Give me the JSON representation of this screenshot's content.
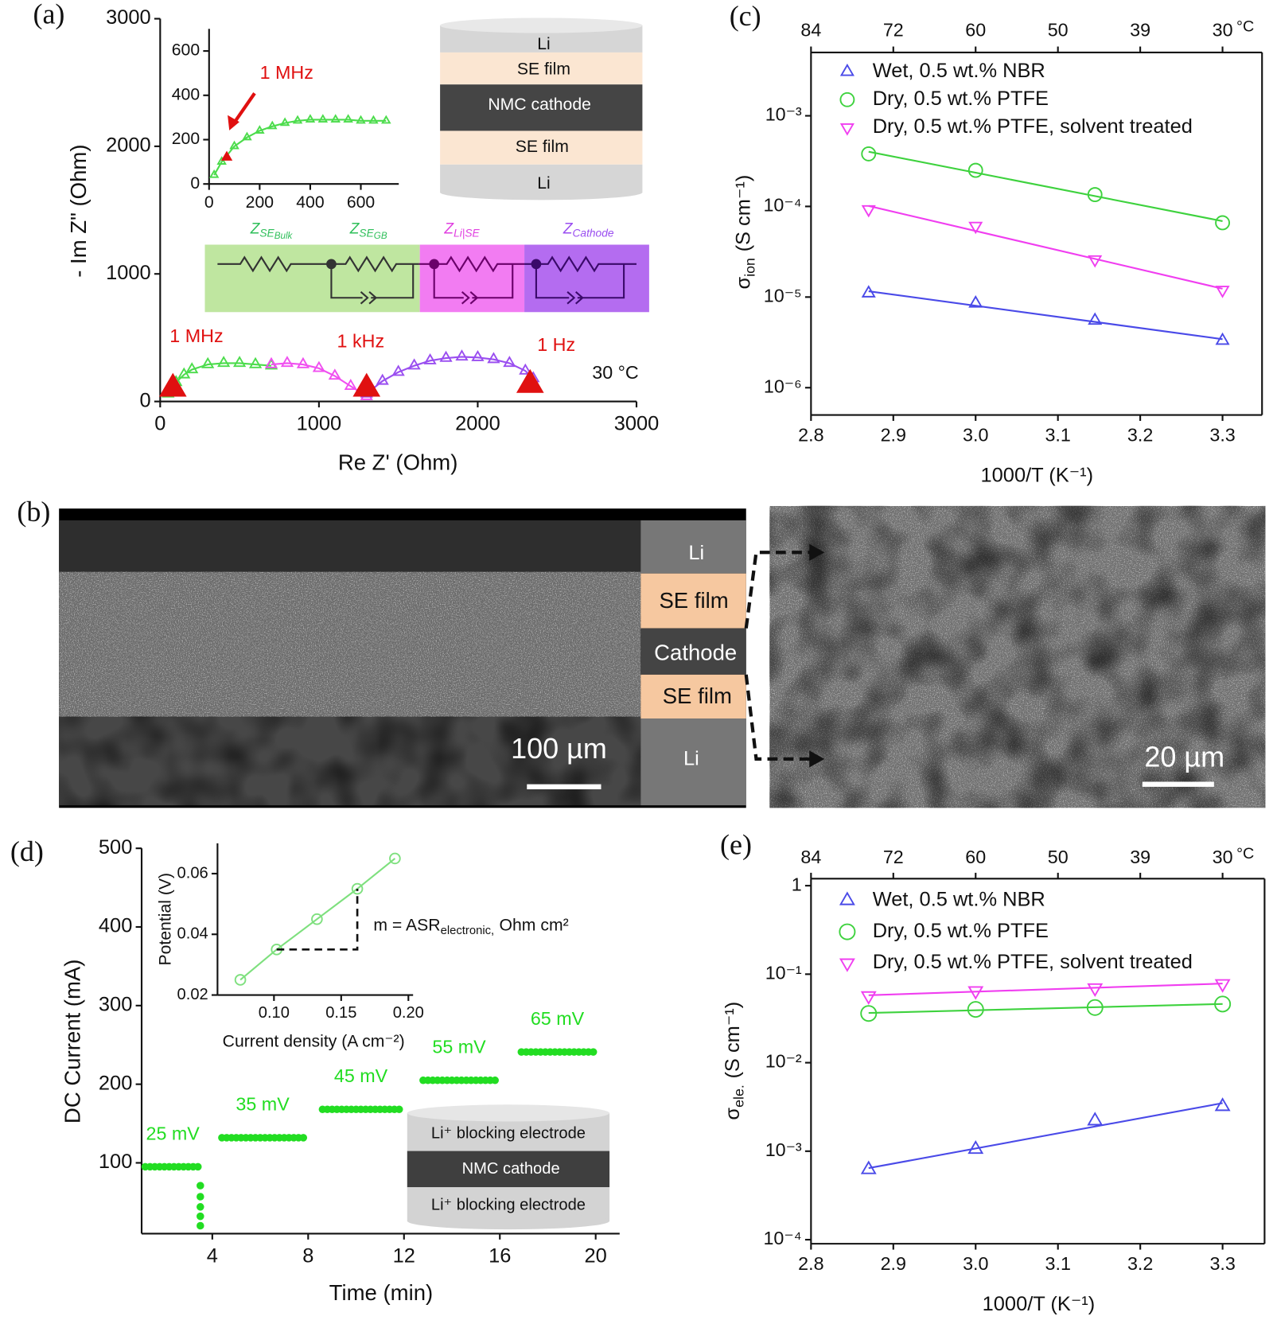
{
  "panel_labels": [
    "(a)",
    "(b)",
    "(c)",
    "(d)",
    "(e)"
  ],
  "schematic_a": {
    "layers": [
      "Li",
      "SE film",
      "NMC cathode",
      "SE film",
      "Li"
    ],
    "circuit": [
      {
        "symbol": "Z",
        "subscript": "SE",
        "subsub": "Bulk"
      },
      {
        "symbol": "Z",
        "subscript": "SE",
        "subsub": "GB"
      },
      {
        "symbol": "Z",
        "subscript": "Li|SE"
      },
      {
        "symbol": "Z",
        "subscript": "Cathode"
      }
    ]
  },
  "panel_b": {
    "layers": [
      "Li",
      "SE film",
      "Cathode",
      "SE film",
      "Li"
    ],
    "scale_bars": [
      "100 µm",
      "20 µm"
    ]
  },
  "schematic_d": {
    "layers": [
      "Li⁺ blocking electrode",
      "NMC cathode",
      "Li⁺ blocking electrode"
    ]
  },
  "chart_data": [
    {
      "type": "line",
      "xlabel": "Re Z' (Ohm)",
      "ylabel": "- Im Z\" (Ohm)",
      "xlim": [
        0,
        3000
      ],
      "ylim": [
        0,
        3000
      ],
      "xticks": [
        0,
        1000,
        2000,
        3000
      ],
      "yticks": [
        0,
        1000,
        2000,
        3000
      ],
      "series": [
        {
          "color": "#4cdc4c",
          "marker": "triangle-up",
          "x": [
            50,
            100,
            150,
            200,
            300,
            400,
            500,
            600,
            700
          ],
          "values": [
            60,
            150,
            210,
            250,
            290,
            300,
            300,
            290,
            280
          ]
        },
        {
          "color": "#f050f0",
          "marker": "triangle-up",
          "x": [
            700,
            800,
            900,
            1000,
            1100,
            1200,
            1300
          ],
          "values": [
            290,
            300,
            290,
            260,
            200,
            120,
            40
          ]
        },
        {
          "color": "#9a4ef0",
          "marker": "triangle-up",
          "x": [
            1300,
            1400,
            1500,
            1600,
            1700,
            1800,
            1900,
            2000,
            2100,
            2200,
            2300,
            2350
          ],
          "values": [
            60,
            160,
            230,
            280,
            320,
            340,
            350,
            345,
            330,
            300,
            240,
            180
          ]
        }
      ],
      "annotations": [
        {
          "text": "1 MHz",
          "x": 80,
          "y": 100,
          "color": "#e01010"
        },
        {
          "text": "1 kHz",
          "x": 1300,
          "y": 100,
          "color": "#e01010"
        },
        {
          "text": "1 Hz",
          "x": 2330,
          "y": 130,
          "color": "#e01010"
        }
      ],
      "note": "30 °C"
    },
    {
      "type": "line",
      "xlim": [
        0,
        750
      ],
      "ylim": [
        0,
        700
      ],
      "xticks": [
        0,
        200,
        400,
        600
      ],
      "yticks": [
        0,
        200,
        400,
        600
      ],
      "series": [
        {
          "color": "#4cdc4c",
          "marker": "triangle-up",
          "x": [
            20,
            50,
            100,
            150,
            200,
            250,
            300,
            350,
            400,
            450,
            500,
            550,
            600,
            650,
            700
          ],
          "values": [
            40,
            100,
            170,
            210,
            240,
            260,
            275,
            285,
            290,
            290,
            290,
            290,
            285,
            285,
            285
          ]
        }
      ],
      "annotations": [
        {
          "text": "1 MHz",
          "x": 70,
          "y": 120,
          "color": "#e01010"
        }
      ]
    },
    {
      "type": "scatter",
      "log_y": true,
      "fit": true,
      "legend": "upper left",
      "xlabel": "1000/T (K⁻¹)",
      "ylabel": {
        "symbol": "σ",
        "subscript": "ion",
        "unit": "(S cm⁻¹)"
      },
      "xlim": [
        2.8,
        3.348
      ],
      "ylim": [
        5e-07,
        0.005
      ],
      "xticks": [
        2.8,
        2.9,
        {
          "value": 3.0,
          "label": "3.0"
        },
        3.1,
        3.2,
        3.3
      ],
      "x2ticks": [
        {
          "value": 2.8,
          "label": "84"
        },
        {
          "value": 2.9,
          "label": "72"
        },
        {
          "value": 3.0,
          "label": "60"
        },
        {
          "value": 3.1,
          "label": "50"
        },
        {
          "value": 3.2,
          "label": "39"
        },
        {
          "value": 3.3,
          "label": "30"
        }
      ],
      "x2unit": "°C",
      "yticks": [
        {
          "value": 1e-06,
          "label": "10⁻⁶"
        },
        {
          "value": 1e-05,
          "label": "10⁻⁵"
        },
        {
          "value": 0.0001,
          "label": "10⁻⁴"
        },
        {
          "value": 0.001,
          "label": "10⁻³"
        }
      ],
      "x": [
        2.87,
        3.0,
        3.145,
        3.3
      ],
      "series": [
        {
          "name": "Wet, 0.5 wt.% NBR",
          "color": "#4a4ae8",
          "marker": "triangle-up",
          "values": [
            1.1e-05,
            8.5e-06,
            5.5e-06,
            3.3e-06
          ]
        },
        {
          "name": "Dry, 0.5 wt.% PTFE",
          "color": "#3ed23e",
          "marker": "circle",
          "values": [
            0.00038,
            0.00025,
            0.000135,
            6.6e-05
          ]
        },
        {
          "name": "Dry, 0.5 wt.% PTFE, solvent  treated",
          "color": "#f03ef0",
          "marker": "triangle-down",
          "values": [
            9.3e-05,
            6.1e-05,
            2.6e-05,
            1.2e-05
          ]
        }
      ]
    },
    {
      "type": "scatter",
      "legend": "on-series",
      "xlabel": "Time (min)",
      "ylabel": "DC Current (mA)",
      "xlim": [
        1.05,
        21
      ],
      "ylim": [
        10,
        500
      ],
      "xticks": [
        4,
        8,
        12,
        16,
        20
      ],
      "yticks": [
        100,
        200,
        300,
        400,
        500
      ],
      "series": [
        {
          "name": "25 mV",
          "color": "#22dd22",
          "marker": "filled-circle",
          "x": [
            1.2,
            1.4,
            1.6,
            1.8,
            2.0,
            2.2,
            2.4,
            2.6,
            2.8,
            3.0,
            3.2,
            3.4,
            3.5,
            3.5,
            3.5,
            3.5,
            3.5
          ],
          "values": [
            95,
            95,
            95,
            95,
            95,
            95,
            95,
            95,
            95,
            95,
            95,
            95,
            71,
            57,
            44,
            32,
            20
          ]
        },
        {
          "name": "35 mV",
          "color": "#22dd22",
          "marker": "filled-circle",
          "x": [
            4.4,
            4.6,
            4.8,
            5.0,
            5.2,
            5.4,
            5.6,
            5.8,
            6.0,
            6.2,
            6.4,
            6.6,
            6.8,
            7.0,
            7.2,
            7.4,
            7.6,
            7.8
          ],
          "values": [
            132,
            132,
            132,
            132,
            132,
            132,
            132,
            132,
            132,
            132,
            132,
            132,
            132,
            132,
            132,
            132,
            132,
            132
          ]
        },
        {
          "name": "45 mV",
          "color": "#22dd22",
          "marker": "filled-circle",
          "x": [
            8.6,
            8.8,
            9.0,
            9.2,
            9.4,
            9.6,
            9.8,
            10.0,
            10.2,
            10.4,
            10.6,
            10.8,
            11.0,
            11.2,
            11.4,
            11.6,
            11.8
          ],
          "values": [
            168,
            168,
            168,
            168,
            168,
            168,
            168,
            168,
            168,
            168,
            168,
            168,
            168,
            168,
            168,
            168,
            168
          ]
        },
        {
          "name": "55 mV",
          "color": "#22dd22",
          "marker": "filled-circle",
          "x": [
            12.8,
            13.0,
            13.2,
            13.4,
            13.6,
            13.8,
            14.0,
            14.2,
            14.4,
            14.6,
            14.8,
            15.0,
            15.2,
            15.4,
            15.6,
            15.8
          ],
          "values": [
            205,
            205,
            205,
            205,
            205,
            205,
            205,
            205,
            205,
            205,
            205,
            205,
            205,
            205,
            205,
            205
          ]
        },
        {
          "name": "65 mV",
          "color": "#22dd22",
          "marker": "filled-circle",
          "x": [
            16.9,
            17.1,
            17.3,
            17.5,
            17.7,
            17.9,
            18.1,
            18.3,
            18.5,
            18.7,
            18.9,
            19.1,
            19.3,
            19.5,
            19.7,
            19.9
          ],
          "values": [
            241,
            241,
            241,
            241,
            241,
            241,
            241,
            241,
            241,
            241,
            241,
            241,
            241,
            241,
            241,
            241
          ]
        }
      ]
    },
    {
      "type": "line",
      "xlabel": "Current density (A cm⁻²)",
      "ylabel": "Potential (V)",
      "xlim": [
        0.058,
        0.2035
      ],
      "ylim": [
        0.02,
        0.07
      ],
      "xticks": [
        {
          "value": 0.1,
          "label": "0.10"
        },
        {
          "value": 0.15,
          "label": "0.15"
        },
        {
          "value": 0.2,
          "label": "0.20"
        }
      ],
      "yticks": [
        0.02,
        0.04,
        0.06
      ],
      "series": [
        {
          "color": "#7ee07e",
          "marker": "circle",
          "x": [
            0.075,
            0.102,
            0.132,
            0.162,
            0.19
          ],
          "values": [
            0.025,
            0.035,
            0.045,
            0.055,
            0.065
          ]
        }
      ],
      "note": {
        "symbol": "m = ASR",
        "subscript": "electronic,",
        "unit": "Ohm cm²"
      }
    },
    {
      "type": "scatter",
      "log_y": true,
      "fit": true,
      "legend": "upper left",
      "xlabel": "1000/T (K⁻¹)",
      "ylabel": {
        "symbol": "σ",
        "subscript": "ele.",
        "unit": "(S cm⁻¹)"
      },
      "xlim": [
        2.8,
        3.351
      ],
      "ylim": [
        9e-05,
        1.2
      ],
      "xticks": [
        2.8,
        2.9,
        {
          "value": 3.0,
          "label": "3.0"
        },
        3.1,
        3.2,
        3.3
      ],
      "x2ticks": [
        {
          "value": 2.8,
          "label": "84"
        },
        {
          "value": 2.9,
          "label": "72"
        },
        {
          "value": 3.0,
          "label": "60"
        },
        {
          "value": 3.1,
          "label": "50"
        },
        {
          "value": 3.2,
          "label": "39"
        },
        {
          "value": 3.3,
          "label": "30"
        }
      ],
      "x2unit": "°C",
      "yticks": [
        {
          "value": 0.0001,
          "label": "10⁻⁴"
        },
        {
          "value": 0.001,
          "label": "10⁻³"
        },
        {
          "value": 0.01,
          "label": "10⁻²"
        },
        {
          "value": 0.1,
          "label": "10⁻¹"
        },
        1
      ],
      "x": [
        2.87,
        3.0,
        3.145,
        3.3
      ],
      "series": [
        {
          "name": "Wet, 0.5 wt.% NBR",
          "color": "#4a4ae8",
          "marker": "triangle-up",
          "values": [
            0.00062,
            0.00105,
            0.0022,
            0.0032
          ]
        },
        {
          "name": "Dry, 0.5 wt.% PTFE",
          "color": "#3ed23e",
          "marker": "circle",
          "values": [
            0.036,
            0.04,
            0.042,
            0.046
          ]
        },
        {
          "name": "Dry, 0.5 wt.% PTFE, solvent  treated",
          "color": "#f03ef0",
          "marker": "triangle-down",
          "values": [
            0.057,
            0.065,
            0.07,
            0.078
          ]
        }
      ]
    }
  ]
}
